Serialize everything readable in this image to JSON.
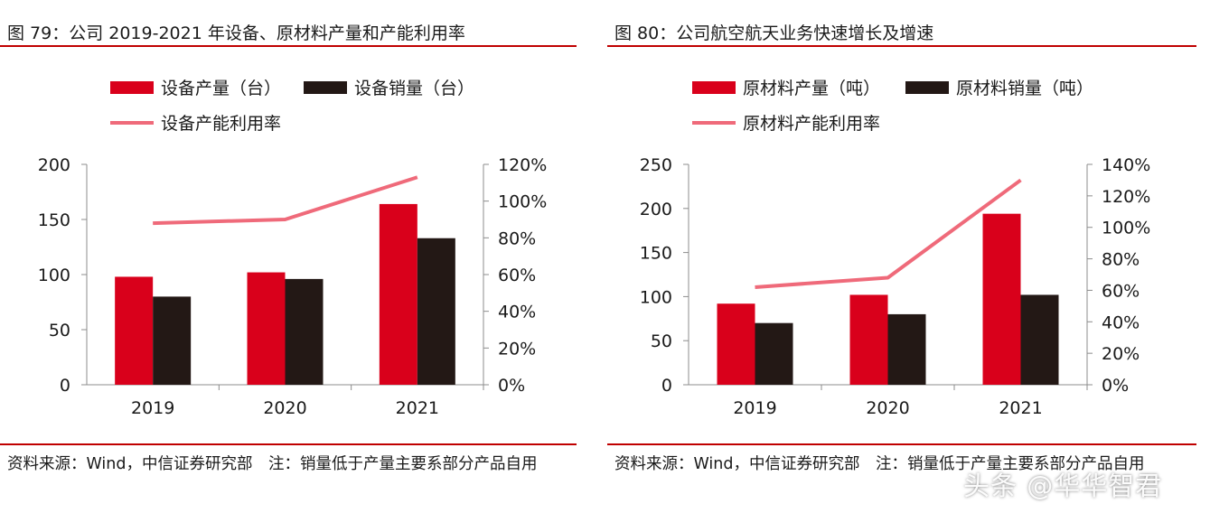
{
  "colors": {
    "primary": "#d9001b",
    "secondary": "#231815",
    "line": "#ef6a7a",
    "rule": "#c00000"
  },
  "panels": [
    {
      "title": "图 79：公司 2019-2021 年设备、原材料产量和产能利用率",
      "note": "资料来源：Wind，中信证券研究部　注：销量低于产量主要系部分产品自用",
      "chart_data": {
        "type": "bar",
        "categories": [
          "2019",
          "2020",
          "2021"
        ],
        "series": [
          {
            "name": "设备产量（台）",
            "kind": "bar",
            "axis": "left",
            "values": [
              98,
              102,
              164
            ]
          },
          {
            "name": "设备销量（台）",
            "kind": "bar",
            "axis": "left",
            "values": [
              80,
              96,
              133
            ]
          },
          {
            "name": "设备产能利用率",
            "kind": "line",
            "axis": "right",
            "values": [
              0.88,
              0.9,
              1.13
            ]
          }
        ],
        "left_axis": {
          "min": 0,
          "max": 200,
          "ticks": [
            0,
            50,
            100,
            150,
            200
          ],
          "tick_labels": [
            "0",
            "50",
            "100",
            "150",
            "200"
          ]
        },
        "right_axis": {
          "min": 0,
          "max": 1.2,
          "ticks": [
            0,
            0.2,
            0.4,
            0.6,
            0.8,
            1.0,
            1.2
          ],
          "tick_labels": [
            "0%",
            "20%",
            "40%",
            "60%",
            "80%",
            "100%",
            "120%"
          ]
        },
        "legend": "top",
        "grid": false
      }
    },
    {
      "title": "图 80：公司航空航天业务快速增长及增速",
      "note": "资料来源：Wind，中信证券研究部　注：销量低于产量主要系部分产品自用",
      "chart_data": {
        "type": "bar",
        "categories": [
          "2019",
          "2020",
          "2021"
        ],
        "series": [
          {
            "name": "原材料产量（吨）",
            "kind": "bar",
            "axis": "left",
            "values": [
              92,
              102,
              194
            ]
          },
          {
            "name": "原材料销量（吨）",
            "kind": "bar",
            "axis": "left",
            "values": [
              70,
              80,
              102
            ]
          },
          {
            "name": "原材料产能利用率",
            "kind": "line",
            "axis": "right",
            "values": [
              0.62,
              0.68,
              1.3
            ]
          }
        ],
        "left_axis": {
          "min": 0,
          "max": 250,
          "ticks": [
            0,
            50,
            100,
            150,
            200,
            250
          ],
          "tick_labels": [
            "0",
            "50",
            "100",
            "150",
            "200",
            "250"
          ]
        },
        "right_axis": {
          "min": 0,
          "max": 1.4,
          "ticks": [
            0,
            0.2,
            0.4,
            0.6,
            0.8,
            1.0,
            1.2,
            1.4
          ],
          "tick_labels": [
            "0%",
            "20%",
            "40%",
            "60%",
            "80%",
            "100%",
            "120%",
            "140%"
          ]
        },
        "legend": "top",
        "grid": false
      }
    }
  ],
  "watermark": "头条 @华华智君"
}
